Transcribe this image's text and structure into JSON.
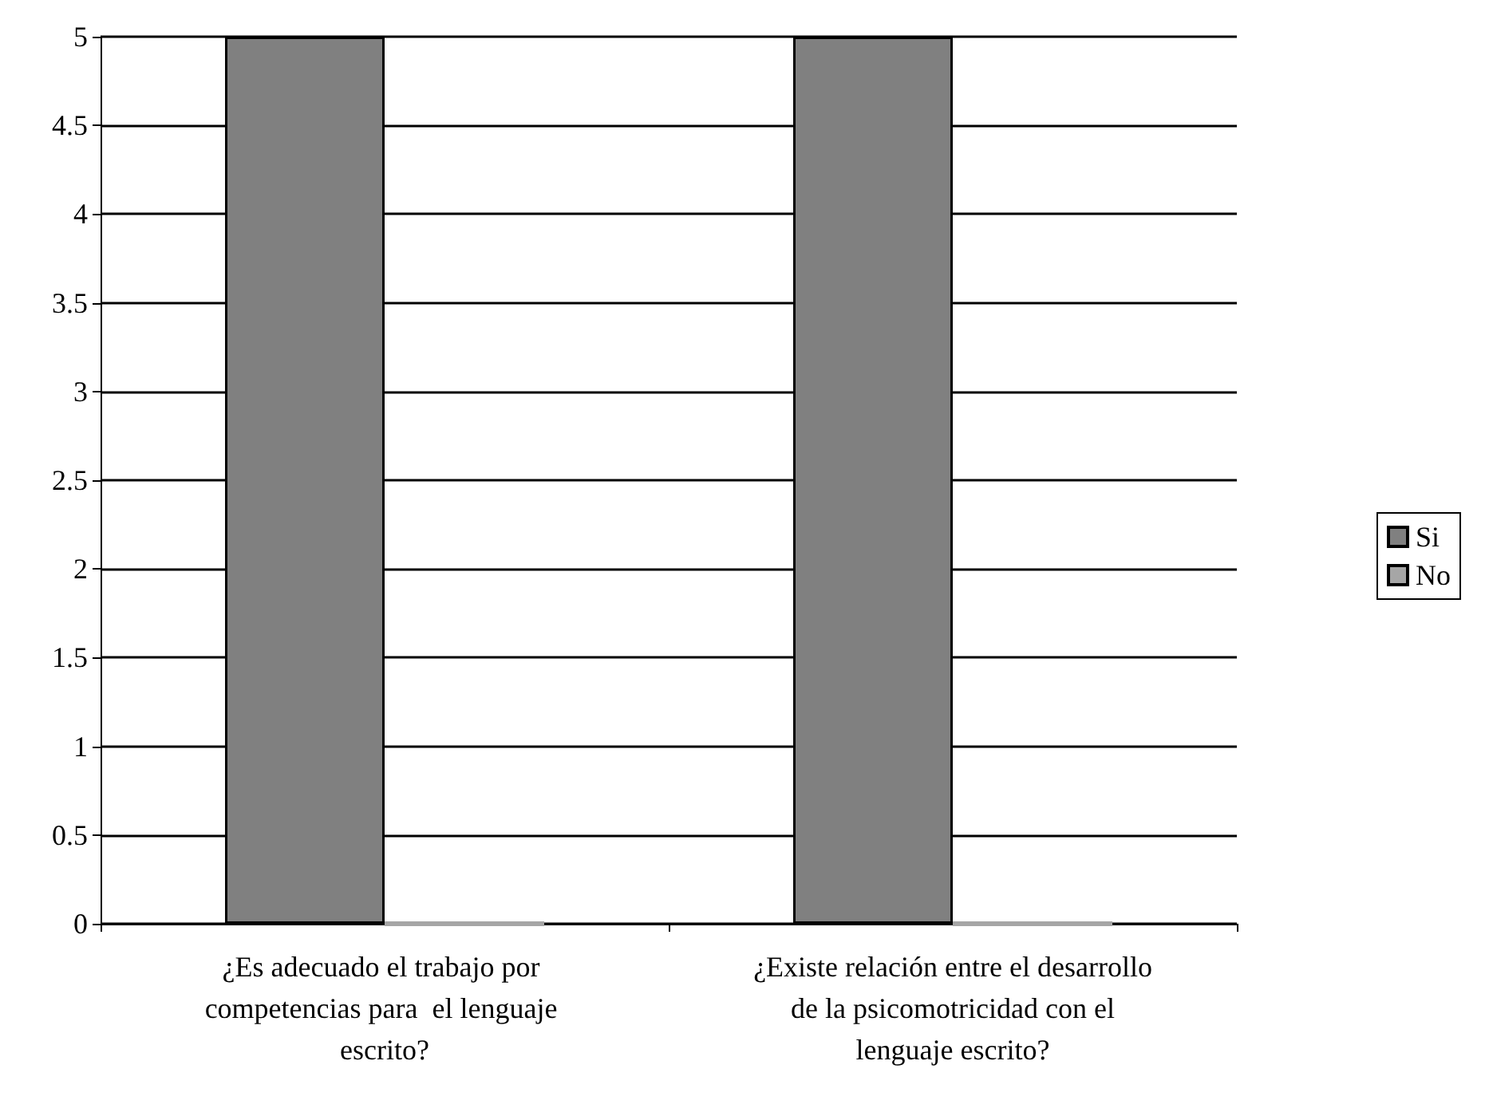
{
  "chart_data": {
    "type": "bar",
    "categories": [
      "¿Es adecuado el trabajo por competencias para  el lenguaje escrito?",
      "¿Existe relación entre el desarrollo de la psicomotricidad con el lenguaje escrito?"
    ],
    "series": [
      {
        "name": "Si",
        "color": "#808080",
        "values": [
          5,
          5
        ]
      },
      {
        "name": "No",
        "color": "#a6a6a6",
        "values": [
          0,
          0
        ]
      }
    ],
    "ylim": [
      0,
      5
    ],
    "yticks": [
      0,
      0.5,
      1,
      1.5,
      2,
      2.5,
      3,
      3.5,
      4,
      4.5,
      5
    ],
    "grid": "y",
    "legend": "right"
  }
}
